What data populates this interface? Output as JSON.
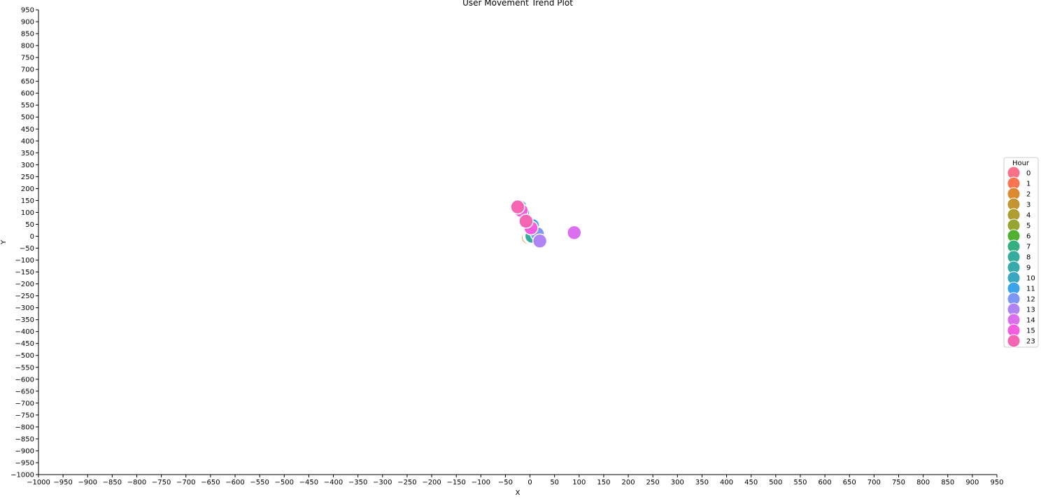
{
  "chart_data": {
    "type": "scatter",
    "title": "User Movement Trend Plot",
    "xlabel": "X",
    "ylabel": "Y",
    "xlim": [
      -1000,
      950
    ],
    "ylim": [
      -1000,
      950
    ],
    "xtick_step": 50,
    "ytick_step": 50,
    "grid": false,
    "legend": {
      "title": "Hour",
      "position": "right",
      "entries": [
        {
          "label": "0",
          "color": "#f77189"
        },
        {
          "label": "1",
          "color": "#f7754f"
        },
        {
          "label": "2",
          "color": "#dc8932"
        },
        {
          "label": "3",
          "color": "#c39532"
        },
        {
          "label": "4",
          "color": "#ae9d31"
        },
        {
          "label": "5",
          "color": "#97a431"
        },
        {
          "label": "6",
          "color": "#50b131"
        },
        {
          "label": "7",
          "color": "#34af84"
        },
        {
          "label": "8",
          "color": "#36ad9c"
        },
        {
          "label": "9",
          "color": "#38aaac"
        },
        {
          "label": "10",
          "color": "#39a7bf"
        },
        {
          "label": "11",
          "color": "#3ba3ec"
        },
        {
          "label": "12",
          "color": "#7e97f4"
        },
        {
          "label": "13",
          "color": "#b084f4"
        },
        {
          "label": "14",
          "color": "#dc6ff0"
        },
        {
          "label": "15",
          "color": "#f45ddf"
        },
        {
          "label": "23",
          "color": "#f565b2"
        }
      ]
    },
    "points": [
      {
        "x": -2,
        "y": -4,
        "hour": "0"
      },
      {
        "x": -1,
        "y": -3,
        "hour": "1"
      },
      {
        "x": -3,
        "y": -5,
        "hour": "2"
      },
      {
        "x": 0,
        "y": -2,
        "hour": "3"
      },
      {
        "x": 1,
        "y": -1,
        "hour": "4"
      },
      {
        "x": 2,
        "y": 0,
        "hour": "5"
      },
      {
        "x": 3,
        "y": 1,
        "hour": "6"
      },
      {
        "x": 5,
        "y": 2,
        "hour": "7"
      },
      {
        "x": 4,
        "y": 0,
        "hour": "8"
      },
      {
        "x": -20,
        "y": 122,
        "hour": "9"
      },
      {
        "x": -15,
        "y": 100,
        "hour": "10"
      },
      {
        "x": 5,
        "y": 45,
        "hour": "11"
      },
      {
        "x": 15,
        "y": 10,
        "hour": "12"
      },
      {
        "x": 20,
        "y": -20,
        "hour": "13"
      },
      {
        "x": 90,
        "y": 15,
        "hour": "14"
      },
      {
        "x": -18,
        "y": 108,
        "hour": "15"
      },
      {
        "x": 2,
        "y": 35,
        "hour": "15"
      },
      {
        "x": -8,
        "y": 63,
        "hour": "23"
      },
      {
        "x": -25,
        "y": 123,
        "hour": "23"
      }
    ]
  }
}
